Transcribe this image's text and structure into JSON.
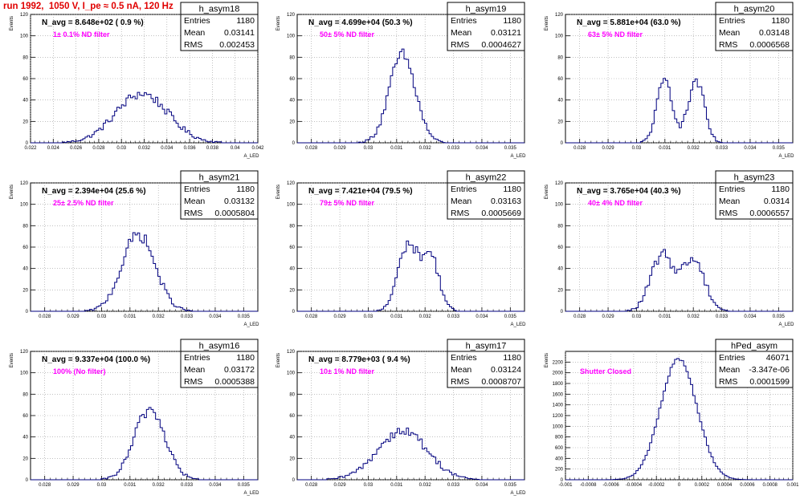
{
  "page_title": "run 1992,  1050 V, I_pe ≈ 0.5 nA, 120 Hz",
  "colors": {
    "title": "#e00000",
    "note": "#ff00ff",
    "histogram": "#00007f",
    "grid": "#9a9a9a"
  },
  "chart_data": [
    {
      "type": "bar",
      "name": "h_asym18",
      "navg": "N_avg = 8.648e+02 ( 0.9 %)",
      "note": "1± 0.1% ND filter",
      "stats": {
        "entries": "1180",
        "mean": "0.03141",
        "rms": "0.002453"
      },
      "xlabel": "A_LED",
      "ylabel": "Events",
      "xlim": [
        0.022,
        0.042
      ],
      "ylim": [
        0,
        120
      ],
      "xticks": [
        "0.022",
        "0.024",
        "0.026",
        "0.028",
        "0.03",
        "0.032",
        "0.034",
        "0.036",
        "0.038",
        "0.04",
        "0.042"
      ],
      "yticks": [
        "0",
        "20",
        "40",
        "60",
        "80",
        "100",
        "120"
      ],
      "peaks": [
        {
          "mu": 0.0318,
          "sigma": 0.0023,
          "height": 46
        }
      ]
    },
    {
      "type": "bar",
      "name": "h_asym19",
      "navg": "N_avg = 4.699e+04 (50.3 %)",
      "note": "50± 5% ND filter",
      "stats": {
        "entries": "1180",
        "mean": "0.03121",
        "rms": "0.0004627"
      },
      "xlabel": "A_LED",
      "ylabel": "Events",
      "xlim": [
        0.0275,
        0.0355
      ],
      "ylim": [
        0,
        120
      ],
      "xticks": [
        "0.028",
        "0.029",
        "0.03",
        "0.031",
        "0.032",
        "0.033",
        "0.034",
        "0.035"
      ],
      "yticks": [
        "0",
        "20",
        "40",
        "60",
        "80",
        "100",
        "120"
      ],
      "peaks": [
        {
          "mu": 0.0312,
          "sigma": 0.00046,
          "height": 82
        }
      ]
    },
    {
      "type": "bar",
      "name": "h_asym20",
      "navg": "N_avg = 5.881e+04 (63.0 %)",
      "note": "63± 5% ND filter",
      "stats": {
        "entries": "1180",
        "mean": "0.03148",
        "rms": "0.0006568"
      },
      "xlabel": "A_LED",
      "ylabel": "Events",
      "xlim": [
        0.0275,
        0.0355
      ],
      "ylim": [
        0,
        120
      ],
      "xticks": [
        "0.028",
        "0.029",
        "0.03",
        "0.031",
        "0.032",
        "0.033",
        "0.034",
        "0.035"
      ],
      "yticks": [
        "0",
        "20",
        "40",
        "60",
        "80",
        "100",
        "120"
      ],
      "peaks": [
        {
          "mu": 0.031,
          "sigma": 0.00028,
          "height": 58
        },
        {
          "mu": 0.0321,
          "sigma": 0.00028,
          "height": 58
        }
      ]
    },
    {
      "type": "bar",
      "name": "h_asym21",
      "navg": "N_avg = 2.394e+04 (25.6 %)",
      "note": "25± 2.5% ND filter",
      "stats": {
        "entries": "1180",
        "mean": "0.03132",
        "rms": "0.0005804"
      },
      "xlabel": "A_LED",
      "ylabel": "Events",
      "xlim": [
        0.0275,
        0.0355
      ],
      "ylim": [
        0,
        120
      ],
      "xticks": [
        "0.028",
        "0.029",
        "0.03",
        "0.031",
        "0.032",
        "0.033",
        "0.034",
        "0.035"
      ],
      "yticks": [
        "0",
        "20",
        "40",
        "60",
        "80",
        "100",
        "120"
      ],
      "peaks": [
        {
          "mu": 0.0313,
          "sigma": 0.00058,
          "height": 72
        }
      ]
    },
    {
      "type": "bar",
      "name": "h_asym22",
      "navg": "N_avg = 7.421e+04 (79.5 %)",
      "note": "79± 5% ND filter",
      "stats": {
        "entries": "1180",
        "mean": "0.03163",
        "rms": "0.0005669"
      },
      "xlabel": "A_LED",
      "ylabel": "Events",
      "xlim": [
        0.0275,
        0.0355
      ],
      "ylim": [
        0,
        120
      ],
      "xticks": [
        "0.028",
        "0.029",
        "0.03",
        "0.031",
        "0.032",
        "0.033",
        "0.034",
        "0.035"
      ],
      "yticks": [
        "0",
        "20",
        "40",
        "60",
        "80",
        "100",
        "120"
      ],
      "peaks": [
        {
          "mu": 0.0314,
          "sigma": 0.00035,
          "height": 62
        },
        {
          "mu": 0.0322,
          "sigma": 0.0003,
          "height": 50
        }
      ]
    },
    {
      "type": "bar",
      "name": "h_asym23",
      "navg": "N_avg = 3.765e+04 (40.3 %)",
      "note": "40± 4% ND filter",
      "stats": {
        "entries": "1180",
        "mean": "0.0314",
        "rms": "0.0006557"
      },
      "xlabel": "A_LED",
      "ylabel": "Events",
      "xlim": [
        0.0275,
        0.0355
      ],
      "ylim": [
        0,
        120
      ],
      "xticks": [
        "0.028",
        "0.029",
        "0.03",
        "0.031",
        "0.032",
        "0.033",
        "0.034",
        "0.035"
      ],
      "yticks": [
        "0",
        "20",
        "40",
        "60",
        "80",
        "100",
        "120"
      ],
      "peaks": [
        {
          "mu": 0.0309,
          "sigma": 0.0004,
          "height": 52
        },
        {
          "mu": 0.032,
          "sigma": 0.0004,
          "height": 48
        }
      ]
    },
    {
      "type": "bar",
      "name": "h_asym16",
      "navg": "N_avg = 9.337e+04 (100.0 %)",
      "note": "100% (No filter)",
      "stats": {
        "entries": "1180",
        "mean": "0.03172",
        "rms": "0.0005388"
      },
      "xlabel": "A_LED",
      "ylabel": "Events",
      "xlim": [
        0.0275,
        0.0355
      ],
      "ylim": [
        0,
        120
      ],
      "xticks": [
        "0.028",
        "0.029",
        "0.03",
        "0.031",
        "0.032",
        "0.033",
        "0.034",
        "0.035"
      ],
      "yticks": [
        "0",
        "20",
        "40",
        "60",
        "80",
        "100",
        "120"
      ],
      "peaks": [
        {
          "mu": 0.0317,
          "sigma": 0.00054,
          "height": 66
        }
      ]
    },
    {
      "type": "bar",
      "name": "h_asym17",
      "navg": "N_avg = 8.779e+03 ( 9.4 %)",
      "note": "10± 1% ND filter",
      "stats": {
        "entries": "1180",
        "mean": "0.03124",
        "rms": "0.0008707"
      },
      "xlabel": "A_LED",
      "ylabel": "Events",
      "xlim": [
        0.0275,
        0.0355
      ],
      "ylim": [
        0,
        120
      ],
      "xticks": [
        "0.028",
        "0.029",
        "0.03",
        "0.031",
        "0.032",
        "0.033",
        "0.034",
        "0.035"
      ],
      "yticks": [
        "0",
        "20",
        "40",
        "60",
        "80",
        "100",
        "120"
      ],
      "peaks": [
        {
          "mu": 0.0312,
          "sigma": 0.00087,
          "height": 46
        }
      ]
    },
    {
      "type": "bar",
      "name": "hPed_asym",
      "navg": "",
      "note": "Shutter Closed",
      "stats": {
        "entries": "46071",
        "mean": "-3.347e-06",
        "rms": "0.0001599"
      },
      "xlabel": "",
      "ylabel": "Events",
      "xlim": [
        -0.001,
        0.001
      ],
      "ylim": [
        0,
        2400
      ],
      "xticks": [
        "-0.001",
        "-0.0008",
        "-0.0006",
        "-0.0004",
        "-0.0002",
        "0",
        "0.0002",
        "0.0004",
        "0.0006",
        "0.0008",
        "0.001"
      ],
      "yticks": [
        "0",
        "200",
        "400",
        "600",
        "800",
        "1000",
        "1200",
        "1400",
        "1600",
        "1800",
        "2000",
        "2200"
      ],
      "peaks": [
        {
          "mu": -3.3e-06,
          "sigma": 0.00016,
          "height": 2260
        }
      ]
    }
  ]
}
